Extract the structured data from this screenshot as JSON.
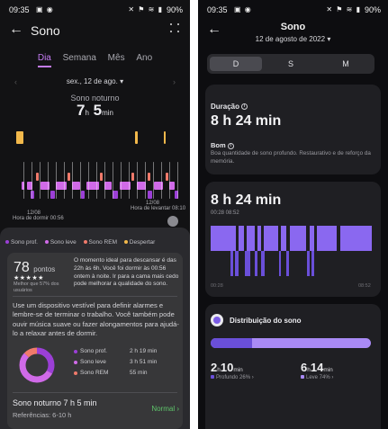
{
  "left": {
    "status": {
      "time": "09:35",
      "icons_left": "▣ ◉",
      "icons_right": "✕ ⚑ ≋ ▮",
      "battery": "90%"
    },
    "app_title": "Sono",
    "tabs": [
      {
        "label": "Dia",
        "active": true
      },
      {
        "label": "Semana",
        "active": false
      },
      {
        "label": "Mês",
        "active": false
      },
      {
        "label": "Ano",
        "active": false
      }
    ],
    "date": "sex., 12 de ago.",
    "sleep_label": "Sono noturno",
    "sleep_hours": "7",
    "sleep_h_unit": "h",
    "sleep_minutes": "5",
    "sleep_min_unit": "min",
    "chart_start_date": "12/08",
    "chart_start_label": "Hora de dormir 00:56",
    "chart_end_date": "12/08",
    "chart_end_label": "Hora de levantar 08:10",
    "legend": [
      {
        "label": "Sono prof.",
        "color": "#9b3fd6"
      },
      {
        "label": "Sono leve",
        "color": "#d06ae8"
      },
      {
        "label": "Sono REM",
        "color": "#f07a6b"
      },
      {
        "label": "Despertar",
        "color": "#f2b84b"
      }
    ],
    "score": "78",
    "score_unit": "pontos",
    "stars": "★★★★★",
    "score_note": "Melhor que 57% dos usuários",
    "ideal_text": "O momento ideal para descansar é das 22h às 6h. Você foi dormir às 00:56 ontem à noite. Ir para a cama mais cedo pode melhorar a qualidade do sono.",
    "tip_text": "Use um dispositivo vestível para definir alarmes e lembre-se de terminar o trabalho. Você também pode ouvir música suave ou fazer alongamentos para ajudá-lo a relaxar antes de dormir.",
    "stages": [
      {
        "label": "Sono prof.",
        "value": "2 h 19 min",
        "color": "#9b3fd6",
        "share": 0.33
      },
      {
        "label": "Sono leve",
        "value": "3 h 51 min",
        "color": "#d06ae8",
        "share": 0.54
      },
      {
        "label": "Sono REM",
        "value": "55 min",
        "color": "#f07a6b",
        "share": 0.13
      }
    ],
    "summary_title": "Sono noturno  7 h 5 min",
    "summary_status": "Normal",
    "summary_ref": "Referências: 6-10 h"
  },
  "right": {
    "status": {
      "time": "09:35",
      "icons_left": "▣ ◉",
      "icons_right": "✕ ⚑ ≋ ▮",
      "battery": "90%"
    },
    "title": "Sono",
    "date": "12 de agosto de 2022",
    "segments": [
      {
        "label": "D",
        "active": true
      },
      {
        "label": "S",
        "active": false
      },
      {
        "label": "M",
        "active": false
      }
    ],
    "duration_label": "Duração",
    "duration_value": "8 h 24 min",
    "quality_label": "Bom",
    "quality_desc": "Boa quantidade de sono profundo. Restaurativo e de reforço da memória.",
    "chart_value": "8 h 24 min",
    "chart_range": "00:28 08:52",
    "axis_start": "00:28",
    "axis_end": "08:52",
    "distribution_title": "Distribuição do sono",
    "deep": {
      "hours": "2",
      "h_unit": "h",
      "minutes": "10",
      "m_unit": "min",
      "label": "Profundo 26%",
      "fraction": 0.26,
      "color": "#6a4fd9"
    },
    "light": {
      "hours": "6",
      "h_unit": "h",
      "minutes": "14",
      "m_unit": "min",
      "label": "Leve 74%",
      "fraction": 0.74,
      "color": "#a98af5"
    }
  }
}
